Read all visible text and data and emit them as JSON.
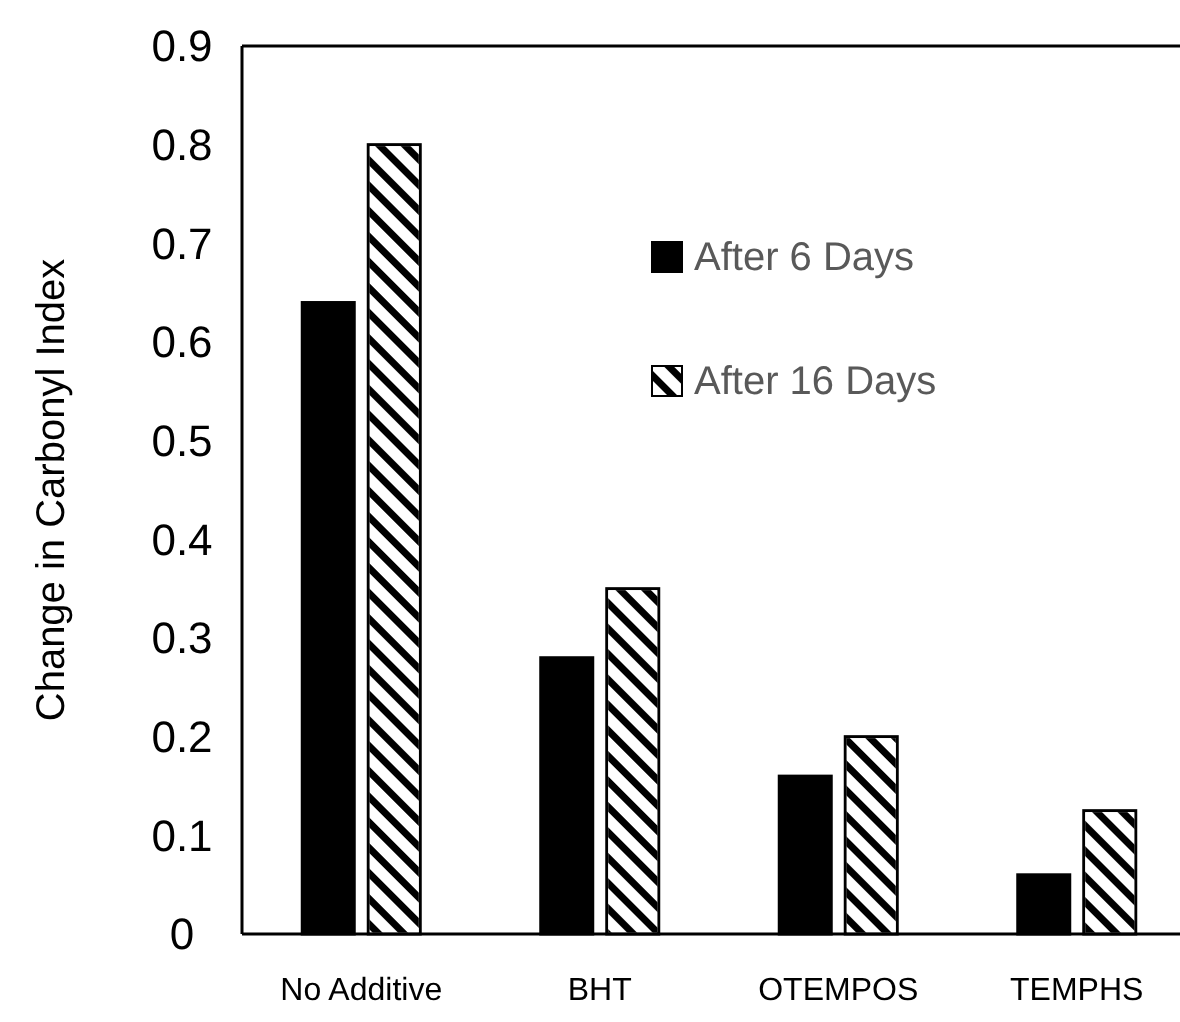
{
  "chart_data": {
    "type": "bar",
    "ylabel": "Change in Carbonyl Index",
    "categories": [
      "No Additive",
      "BHT",
      "OTEMPOS",
      "TEMPHS"
    ],
    "series": [
      {
        "name": "After 6 Days",
        "color": "#000000",
        "values": [
          0.64,
          0.28,
          0.16,
          0.06
        ]
      },
      {
        "name": "After 16 Days",
        "color": "#ffffff",
        "values": [
          0.8,
          0.35,
          0.2,
          0.125
        ]
      }
    ],
    "ylim": [
      0,
      0.9
    ],
    "yticks": [
      {
        "value": 0,
        "label": "0"
      },
      0.1,
      0.2,
      0.3,
      0.4,
      0.5,
      0.6,
      0.7,
      0.8,
      0.9
    ],
    "grid": false,
    "legend": "top right"
  }
}
